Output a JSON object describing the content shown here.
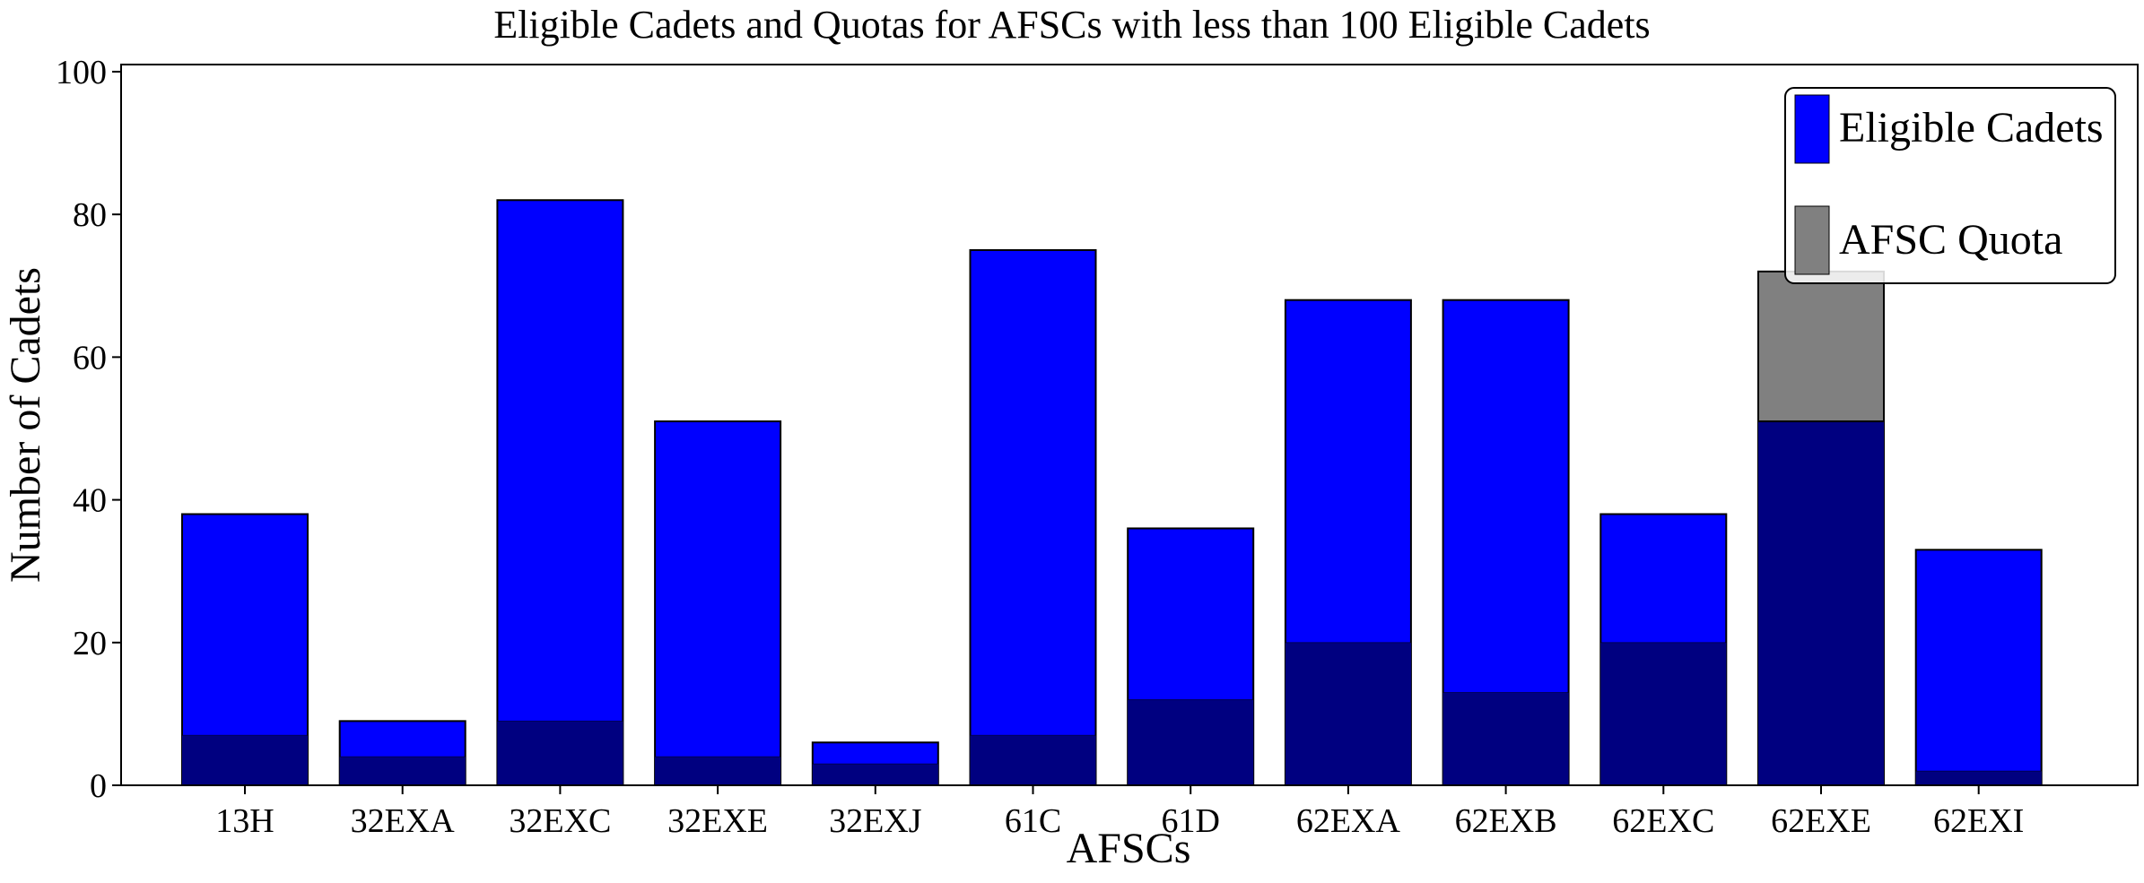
{
  "chart_data": {
    "type": "bar",
    "title": "Eligible Cadets and Quotas for AFSCs with less than 100 Eligible Cadets",
    "xlabel": "AFSCs",
    "ylabel": "Number of Cadets",
    "ylim": [
      0,
      101
    ],
    "yticks": [
      "0",
      "20",
      "40",
      "60",
      "80",
      "100"
    ],
    "grid": false,
    "legend_position": "top-right",
    "categories": [
      "13H",
      "32EXA",
      "32EXC",
      "32EXE",
      "32EXJ",
      "61C",
      "61D",
      "62EXA",
      "62EXB",
      "62EXC",
      "62EXE",
      "62EXI"
    ],
    "series": [
      {
        "name": "Eligible Cadets",
        "color": "#0000ff",
        "values": [
          38,
          9,
          82,
          51,
          6,
          75,
          36,
          68,
          68,
          38,
          51,
          33
        ]
      },
      {
        "name": "AFSC Quota",
        "color": "#808080",
        "opacity": 0.5,
        "values": [
          7,
          4,
          9,
          4,
          3,
          7,
          12,
          20,
          13,
          20,
          72,
          2
        ]
      }
    ]
  }
}
